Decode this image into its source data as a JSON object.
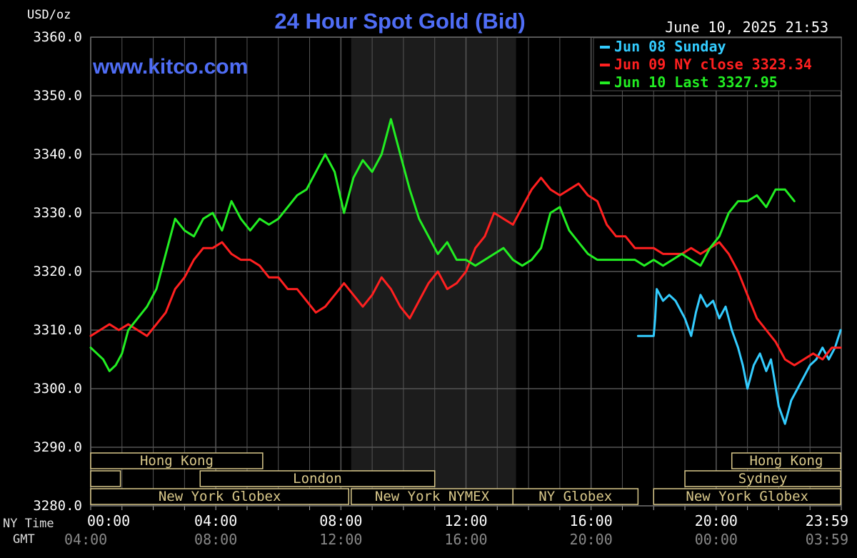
{
  "chart_data": {
    "type": "line",
    "title": "24 Hour Spot Gold (Bid)",
    "ylabel": "USD/oz",
    "timestamp": "June 10, 2025 21:53",
    "watermark": "www.kitco.com",
    "ylim": [
      3280,
      3360
    ],
    "y_ticks": [
      "3360.0",
      "3350.0",
      "3340.0",
      "3330.0",
      "3320.0",
      "3310.0",
      "3300.0",
      "3290.0",
      "3280.0"
    ],
    "x_label_ny": "NY Time",
    "x_label_gmt": "GMT",
    "x_ticks_ny": [
      "00:00",
      "04:00",
      "08:00",
      "12:00",
      "16:00",
      "20:00",
      "23:59"
    ],
    "x_ticks_gmt": [
      "04:00",
      "08:00",
      "12:00",
      "16:00",
      "20:00",
      "00:00",
      "03:59"
    ],
    "legend": [
      {
        "text": "Jun 08 Sunday",
        "color": "#33ccff"
      },
      {
        "text": "Jun 09 NY close 3323.34",
        "color": "#ff2020"
      },
      {
        "text": "Jun 10 Last 3327.95",
        "color": "#22ee22"
      }
    ],
    "sessions": [
      {
        "label": "Hong Kong",
        "start": 0,
        "end": 5.5,
        "row": 0
      },
      {
        "label": "",
        "start": 0,
        "end": 0.95,
        "row": 1
      },
      {
        "label": "London",
        "start": 3.5,
        "end": 11,
        "row": 1
      },
      {
        "label": "New York Globex",
        "start": 0,
        "end": 8.25,
        "row": 2
      },
      {
        "label": "New York NYMEX",
        "start": 8.33,
        "end": 13.5,
        "row": 2
      },
      {
        "label": "NY Globex",
        "start": 13.5,
        "end": 17.5,
        "row": 2
      },
      {
        "label": "Hong Kong",
        "start": 20.5,
        "end": 23.98,
        "row": 0
      },
      {
        "label": "Sydney",
        "start": 19,
        "end": 23.98,
        "row": 1
      },
      {
        "label": "New York Globex",
        "start": 18,
        "end": 23.98,
        "row": 2
      }
    ],
    "shaded_region": [
      8.33,
      13.6
    ],
    "series": [
      {
        "name": "Jun 08 Sunday",
        "color": "#33ccff",
        "x": [
          17.5,
          18.0,
          18.05,
          18.1,
          18.3,
          18.5,
          18.7,
          19.0,
          19.2,
          19.35,
          19.5,
          19.7,
          19.9,
          20.1,
          20.3,
          20.5,
          20.7,
          20.85,
          21.0,
          21.2,
          21.4,
          21.6,
          21.75,
          21.85,
          22.0,
          22.2,
          22.4,
          22.6,
          22.8,
          23.0,
          23.2,
          23.4,
          23.6,
          23.8,
          23.98
        ],
        "y": [
          3309,
          3309,
          3312,
          3317,
          3315,
          3316,
          3315,
          3312,
          3309,
          3313,
          3316,
          3314,
          3315,
          3312,
          3314,
          3310,
          3307,
          3304,
          3300,
          3304,
          3306,
          3303,
          3305,
          3302,
          3297,
          3294,
          3298,
          3300,
          3302,
          3304,
          3305,
          3307,
          3305,
          3307,
          3310
        ]
      },
      {
        "name": "Jun 09 NY close 3323.34",
        "color": "#ff2020",
        "x": [
          0.0,
          0.3,
          0.6,
          0.9,
          1.2,
          1.5,
          1.8,
          2.1,
          2.4,
          2.7,
          3.0,
          3.3,
          3.6,
          3.9,
          4.2,
          4.5,
          4.8,
          5.1,
          5.4,
          5.7,
          6.0,
          6.3,
          6.6,
          6.9,
          7.2,
          7.5,
          7.8,
          8.1,
          8.4,
          8.7,
          9.0,
          9.3,
          9.6,
          9.9,
          10.2,
          10.5,
          10.8,
          11.1,
          11.4,
          11.7,
          12.0,
          12.3,
          12.6,
          12.9,
          13.2,
          13.5,
          13.8,
          14.1,
          14.4,
          14.7,
          15.0,
          15.3,
          15.6,
          15.9,
          16.2,
          16.5,
          16.8,
          17.1,
          17.4,
          17.7,
          18.0,
          18.3,
          18.6,
          18.9,
          19.2,
          19.5,
          19.8,
          20.1,
          20.4,
          20.7,
          21.0,
          21.3,
          21.6,
          21.9,
          22.2,
          22.5,
          22.8,
          23.1,
          23.4,
          23.7,
          23.98
        ],
        "y": [
          3309,
          3310,
          3311,
          3310,
          3311,
          3310,
          3309,
          3311,
          3313,
          3317,
          3319,
          3322,
          3324,
          3324,
          3325,
          3323,
          3322,
          3322,
          3321,
          3319,
          3319,
          3317,
          3317,
          3315,
          3313,
          3314,
          3316,
          3318,
          3316,
          3314,
          3316,
          3319,
          3317,
          3314,
          3312,
          3315,
          3318,
          3320,
          3317,
          3318,
          3320,
          3324,
          3326,
          3330,
          3329,
          3328,
          3331,
          3334,
          3336,
          3334,
          3333,
          3334,
          3335,
          3333,
          3332,
          3328,
          3326,
          3326,
          3324,
          3324,
          3324,
          3323,
          3323,
          3323,
          3324,
          3323,
          3324,
          3325,
          3323,
          3320,
          3316,
          3312,
          3310,
          3308,
          3305,
          3304,
          3305,
          3306,
          3305,
          3307,
          3307
        ]
      },
      {
        "name": "Jun 10 Last 3327.95",
        "color": "#22ee22",
        "x": [
          0.0,
          0.2,
          0.4,
          0.6,
          0.8,
          1.0,
          1.2,
          1.5,
          1.8,
          2.1,
          2.4,
          2.7,
          3.0,
          3.3,
          3.6,
          3.9,
          4.2,
          4.5,
          4.8,
          5.1,
          5.4,
          5.7,
          6.0,
          6.3,
          6.6,
          6.9,
          7.2,
          7.5,
          7.8,
          8.1,
          8.4,
          8.7,
          9.0,
          9.3,
          9.6,
          9.9,
          10.2,
          10.5,
          10.8,
          11.1,
          11.4,
          11.7,
          12.0,
          12.3,
          12.6,
          12.9,
          13.2,
          13.5,
          13.8,
          14.1,
          14.4,
          14.7,
          15.0,
          15.3,
          15.6,
          15.9,
          16.2,
          16.5,
          16.8,
          17.1,
          17.4,
          17.7,
          18.0,
          18.3,
          18.6,
          18.9,
          19.2,
          19.5,
          19.8,
          20.1,
          20.4,
          20.7,
          21.0,
          21.3,
          21.6,
          21.9,
          22.2,
          22.5
        ],
        "y": [
          3307,
          3306,
          3305,
          3303,
          3304,
          3306,
          3310,
          3312,
          3314,
          3317,
          3323,
          3329,
          3327,
          3326,
          3329,
          3330,
          3327,
          3332,
          3329,
          3327,
          3329,
          3328,
          3329,
          3331,
          3333,
          3334,
          3337,
          3340,
          3337,
          3330,
          3336,
          3339,
          3337,
          3340,
          3346,
          3340,
          3334,
          3329,
          3326,
          3323,
          3325,
          3322,
          3322,
          3321,
          3322,
          3323,
          3324,
          3322,
          3321,
          3322,
          3324,
          3330,
          3331,
          3327,
          3325,
          3323,
          3322,
          3322,
          3322,
          3322,
          3322,
          3321,
          3322,
          3321,
          3322,
          3323,
          3322,
          3321,
          3324,
          3326,
          3330,
          3332,
          3332,
          3333,
          3331,
          3334,
          3334,
          3332
        ]
      }
    ]
  }
}
